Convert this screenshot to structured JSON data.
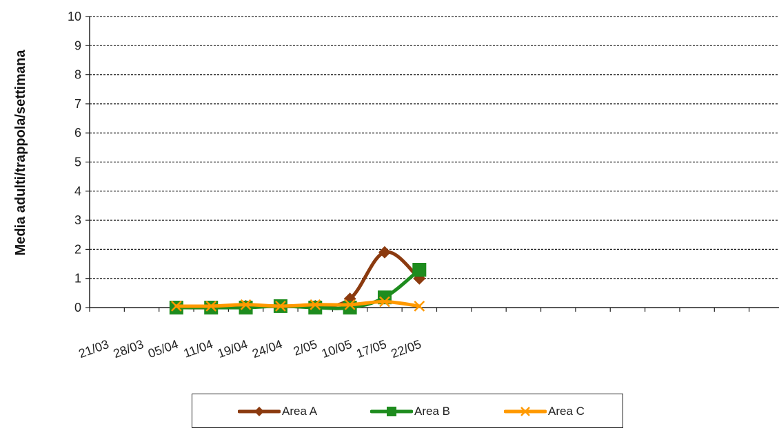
{
  "chart_data": {
    "type": "line",
    "ylabel": "Media adulti/trappola/settimana",
    "xlabel": "",
    "ylim": [
      0,
      10
    ],
    "yticks": [
      0,
      1,
      2,
      3,
      4,
      5,
      6,
      7,
      8,
      9,
      10
    ],
    "grid": true,
    "categories": [
      "21/03",
      "28/03",
      "05/04",
      "11/04",
      "19/04",
      "24/04",
      "2/05",
      "10/05",
      "17/05",
      "22/05"
    ],
    "total_slots": 20,
    "series": [
      {
        "name": "Area A",
        "color": "#8B3A0F",
        "marker": "diamond",
        "values": [
          null,
          null,
          0.0,
          0.0,
          0.05,
          0.05,
          0.05,
          0.3,
          1.9,
          1.0
        ]
      },
      {
        "name": "Area B",
        "color": "#1E8C1E",
        "marker": "square",
        "values": [
          null,
          null,
          0.0,
          0.0,
          0.0,
          0.05,
          0.0,
          0.0,
          0.35,
          1.3
        ]
      },
      {
        "name": "Area C",
        "color": "#FF9900",
        "marker": "x",
        "values": [
          null,
          null,
          0.05,
          0.05,
          0.1,
          0.05,
          0.1,
          0.1,
          0.2,
          0.05
        ]
      }
    ],
    "legend_position": "bottom"
  }
}
